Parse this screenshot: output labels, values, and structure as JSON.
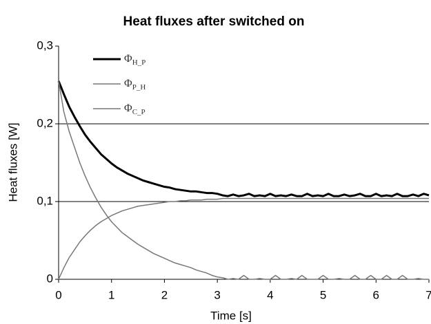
{
  "chart_data": {
    "type": "line",
    "title": "Heat fluxes after switched on",
    "xlabel": "Time [s]",
    "ylabel": "Heat fluxes [W]",
    "x": [
      0,
      0.1,
      0.2,
      0.3,
      0.4,
      0.5,
      0.6,
      0.7,
      0.8,
      0.9,
      1.0,
      1.1,
      1.2,
      1.3,
      1.4,
      1.5,
      1.6,
      1.7,
      1.8,
      1.9,
      2.0,
      2.1,
      2.2,
      2.3,
      2.4,
      2.5,
      2.6,
      2.7,
      2.8,
      2.9,
      3.0,
      3.1,
      3.2,
      3.3,
      3.4,
      3.5,
      3.6,
      3.7,
      3.8,
      3.9,
      4.0,
      4.1,
      4.2,
      4.3,
      4.4,
      4.5,
      4.6,
      4.7,
      4.8,
      4.9,
      5.0,
      5.1,
      5.2,
      5.3,
      5.4,
      5.5,
      5.6,
      5.7,
      5.8,
      5.9,
      6.0,
      6.1,
      6.2,
      6.3,
      6.4,
      6.5,
      6.6,
      6.7,
      6.8,
      6.9,
      7.0
    ],
    "series": [
      {
        "name": "ΦH_P",
        "color": "#000000",
        "width": 3,
        "values": [
          0.255,
          0.238,
          0.222,
          0.209,
          0.197,
          0.186,
          0.177,
          0.169,
          0.161,
          0.155,
          0.149,
          0.144,
          0.14,
          0.136,
          0.133,
          0.13,
          0.127,
          0.125,
          0.123,
          0.121,
          0.119,
          0.118,
          0.116,
          0.115,
          0.114,
          0.113,
          0.113,
          0.112,
          0.111,
          0.111,
          0.11,
          0.108,
          0.107,
          0.109,
          0.107,
          0.108,
          0.11,
          0.107,
          0.108,
          0.107,
          0.11,
          0.107,
          0.108,
          0.107,
          0.109,
          0.107,
          0.107,
          0.11,
          0.107,
          0.108,
          0.107,
          0.11,
          0.107,
          0.107,
          0.109,
          0.107,
          0.108,
          0.11,
          0.107,
          0.107,
          0.11,
          0.107,
          0.108,
          0.107,
          0.11,
          0.107,
          0.107,
          0.109,
          0.107,
          0.11,
          0.108
        ]
      },
      {
        "name": "ΦP_H",
        "color": "#777777",
        "width": 1.5,
        "values": [
          0.255,
          0.215,
          0.19,
          0.17,
          0.15,
          0.133,
          0.118,
          0.105,
          0.093,
          0.083,
          0.074,
          0.067,
          0.06,
          0.055,
          0.05,
          0.045,
          0.041,
          0.037,
          0.033,
          0.03,
          0.027,
          0.024,
          0.021,
          0.019,
          0.017,
          0.015,
          0.012,
          0.01,
          0.008,
          0.005,
          0.003,
          0.002,
          0,
          0.001,
          0,
          0.005,
          0,
          0,
          0.001,
          0,
          0,
          0.005,
          0,
          0,
          0.001,
          0,
          0.005,
          0,
          0,
          0,
          0.005,
          0,
          0,
          0.001,
          0,
          0,
          0.005,
          0,
          0,
          0.005,
          0,
          0,
          0.005,
          0,
          0,
          0.005,
          0,
          0,
          0.001,
          0,
          0
        ]
      },
      {
        "name": "ΦC_P",
        "color": "#777777",
        "width": 1.5,
        "values": [
          0,
          0.015,
          0.028,
          0.038,
          0.048,
          0.056,
          0.063,
          0.069,
          0.074,
          0.078,
          0.082,
          0.085,
          0.088,
          0.09,
          0.092,
          0.094,
          0.095,
          0.096,
          0.097,
          0.098,
          0.099,
          0.1,
          0.1,
          0.101,
          0.101,
          0.102,
          0.102,
          0.102,
          0.103,
          0.103,
          0.103,
          0.104,
          0.104,
          0.104,
          0.104,
          0.104,
          0.104,
          0.104,
          0.104,
          0.104,
          0.104,
          0.104,
          0.104,
          0.104,
          0.104,
          0.104,
          0.104,
          0.104,
          0.104,
          0.104,
          0.104,
          0.104,
          0.104,
          0.104,
          0.104,
          0.104,
          0.104,
          0.104,
          0.104,
          0.104,
          0.104,
          0.104,
          0.104,
          0.104,
          0.104,
          0.104,
          0.104,
          0.104,
          0.104,
          0.104,
          0.104
        ]
      }
    ],
    "xlim": [
      0,
      7
    ],
    "xticks": [
      0,
      1,
      2,
      3,
      4,
      5,
      6,
      7
    ],
    "ylim": [
      0,
      0.3
    ],
    "yticks": [
      0,
      {
        "value": 0.1,
        "label": "0,1"
      },
      {
        "value": 0.2,
        "label": "0,2"
      },
      {
        "value": 0.3,
        "label": "0,3"
      }
    ],
    "grid": true,
    "legend": "upper left"
  }
}
